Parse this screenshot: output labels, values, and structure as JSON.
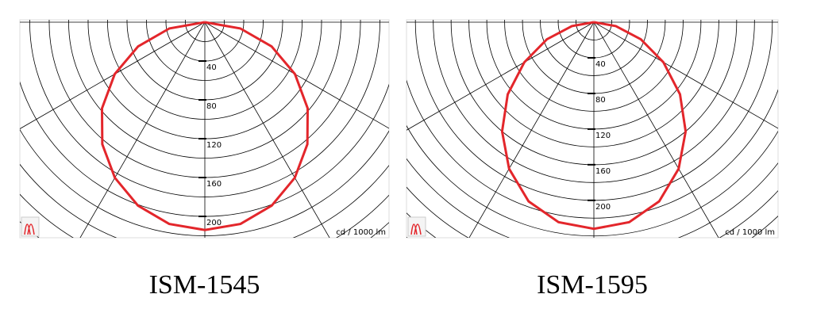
{
  "chart_data": [
    {
      "type": "polar",
      "title": "ISM-1545",
      "unit": "cd / 1000 lm",
      "color": "#e3262b",
      "theta": [
        -90,
        -80,
        -70,
        -60,
        -50,
        -40,
        -30,
        -20,
        -10,
        0,
        10,
        20,
        30,
        40,
        50,
        60,
        70,
        80,
        90
      ],
      "values": [
        0,
        37,
        73,
        107,
        138,
        164,
        185,
        201,
        211,
        214,
        211,
        201,
        185,
        164,
        138,
        107,
        73,
        37,
        0
      ],
      "rlim": [
        0,
        222
      ],
      "rticks": [
        40,
        80,
        120,
        160,
        200
      ],
      "rgrid": [
        20,
        40,
        60,
        80,
        100,
        120,
        140,
        160,
        180,
        200,
        220,
        240,
        260,
        280,
        300
      ],
      "angle_grid": [
        -90,
        -60,
        -30,
        0,
        30,
        60,
        90
      ]
    },
    {
      "type": "polar",
      "title": "ISM-1595",
      "unit": "cd / 1000 lm",
      "color": "#e3262b",
      "theta": [
        -90,
        -80,
        -70,
        -60,
        -50,
        -40,
        -30,
        -20,
        -10,
        0,
        10,
        20,
        30,
        40,
        50,
        60,
        70,
        80,
        90
      ],
      "values": [
        0,
        25,
        56,
        90,
        126,
        160,
        190,
        214,
        228,
        232,
        228,
        214,
        190,
        160,
        126,
        90,
        56,
        25,
        0
      ],
      "rlim": [
        0,
        242
      ],
      "rticks": [
        40,
        80,
        120,
        160,
        200
      ],
      "rgrid": [
        20,
        40,
        60,
        80,
        100,
        120,
        140,
        160,
        180,
        200,
        220,
        240,
        260,
        280,
        300,
        320
      ],
      "angle_grid": [
        -90,
        -60,
        -30,
        0,
        30,
        60,
        90
      ]
    }
  ]
}
